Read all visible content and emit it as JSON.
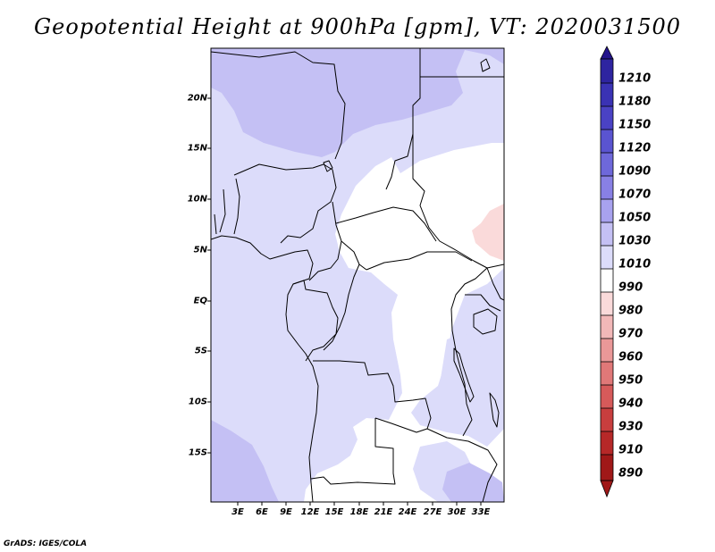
{
  "title": "Geopotential Height at 900hPa [gpm], VT: 2020031500",
  "credit": "GrADS: IGES/COLA",
  "map": {
    "variable": "Geopotential Height",
    "level": "900hPa",
    "units": "gpm",
    "valid_time": "2020031500",
    "lon_range_deg": [
      -1.5,
      35.5
    ],
    "lat_range_deg": [
      -20,
      25
    ],
    "lat_labels": [
      "20N",
      "15N",
      "10N",
      "5N",
      "EQ",
      "5S",
      "10S",
      "15S"
    ],
    "lon_labels": [
      "3E",
      "6E",
      "9E",
      "12E",
      "15E",
      "18E",
      "21E",
      "24E",
      "27E",
      "30E",
      "33E"
    ]
  },
  "colorbar": {
    "levels": [
      "1210",
      "1180",
      "1150",
      "1120",
      "1090",
      "1070",
      "1050",
      "1030",
      "1010",
      "990",
      "980",
      "970",
      "960",
      "950",
      "940",
      "930",
      "910",
      "890"
    ],
    "colors": [
      "#24148c",
      "#2e24a0",
      "#3a32b4",
      "#4a42c4",
      "#5a54d0",
      "#6e68da",
      "#8880e4",
      "#a8a2ee",
      "#c4c0f4",
      "#dcdcfa",
      "#ffffff",
      "#fadada",
      "#f2b8b8",
      "#ea9898",
      "#e07878",
      "#d65a5a",
      "#c83e3e",
      "#b62828",
      "#a01818"
    ]
  }
}
